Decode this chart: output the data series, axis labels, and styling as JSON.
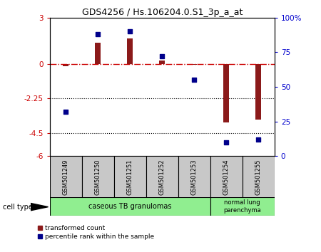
{
  "title": "GDS4256 / Hs.106204.0.S1_3p_a_at",
  "samples": [
    "GSM501249",
    "GSM501250",
    "GSM501251",
    "GSM501252",
    "GSM501253",
    "GSM501254",
    "GSM501255"
  ],
  "bar_values": [
    -0.15,
    1.35,
    1.65,
    0.2,
    -0.05,
    -3.8,
    -3.6
  ],
  "dot_values": [
    32,
    88,
    90,
    72,
    55,
    10,
    12
  ],
  "ylim_left": [
    -6,
    3
  ],
  "ylim_right": [
    0,
    100
  ],
  "yticks_left": [
    -6,
    -4.5,
    -2.25,
    0,
    3
  ],
  "yticks_right": [
    0,
    25,
    50,
    75,
    100
  ],
  "ytick_labels_left": [
    "-6",
    "-4.5",
    "-2.25",
    "0",
    "3"
  ],
  "ytick_labels_right": [
    "0",
    "25",
    "50",
    "75",
    "100%"
  ],
  "hline_y": 0,
  "dotted_lines": [
    -2.25,
    -4.5
  ],
  "bar_color": "#8B1A1A",
  "dot_color": "#00008B",
  "hline_color": "#CC0000",
  "group1_label": "caseous TB granulomas",
  "group2_label": "normal lung\nparenchyma",
  "group_color": "#90EE90",
  "sample_box_color": "#C8C8C8",
  "cell_type_label": "cell type",
  "legend_bar_label": "transformed count",
  "legend_dot_label": "percentile rank within the sample",
  "background_color": "#ffffff",
  "bar_width": 0.18
}
